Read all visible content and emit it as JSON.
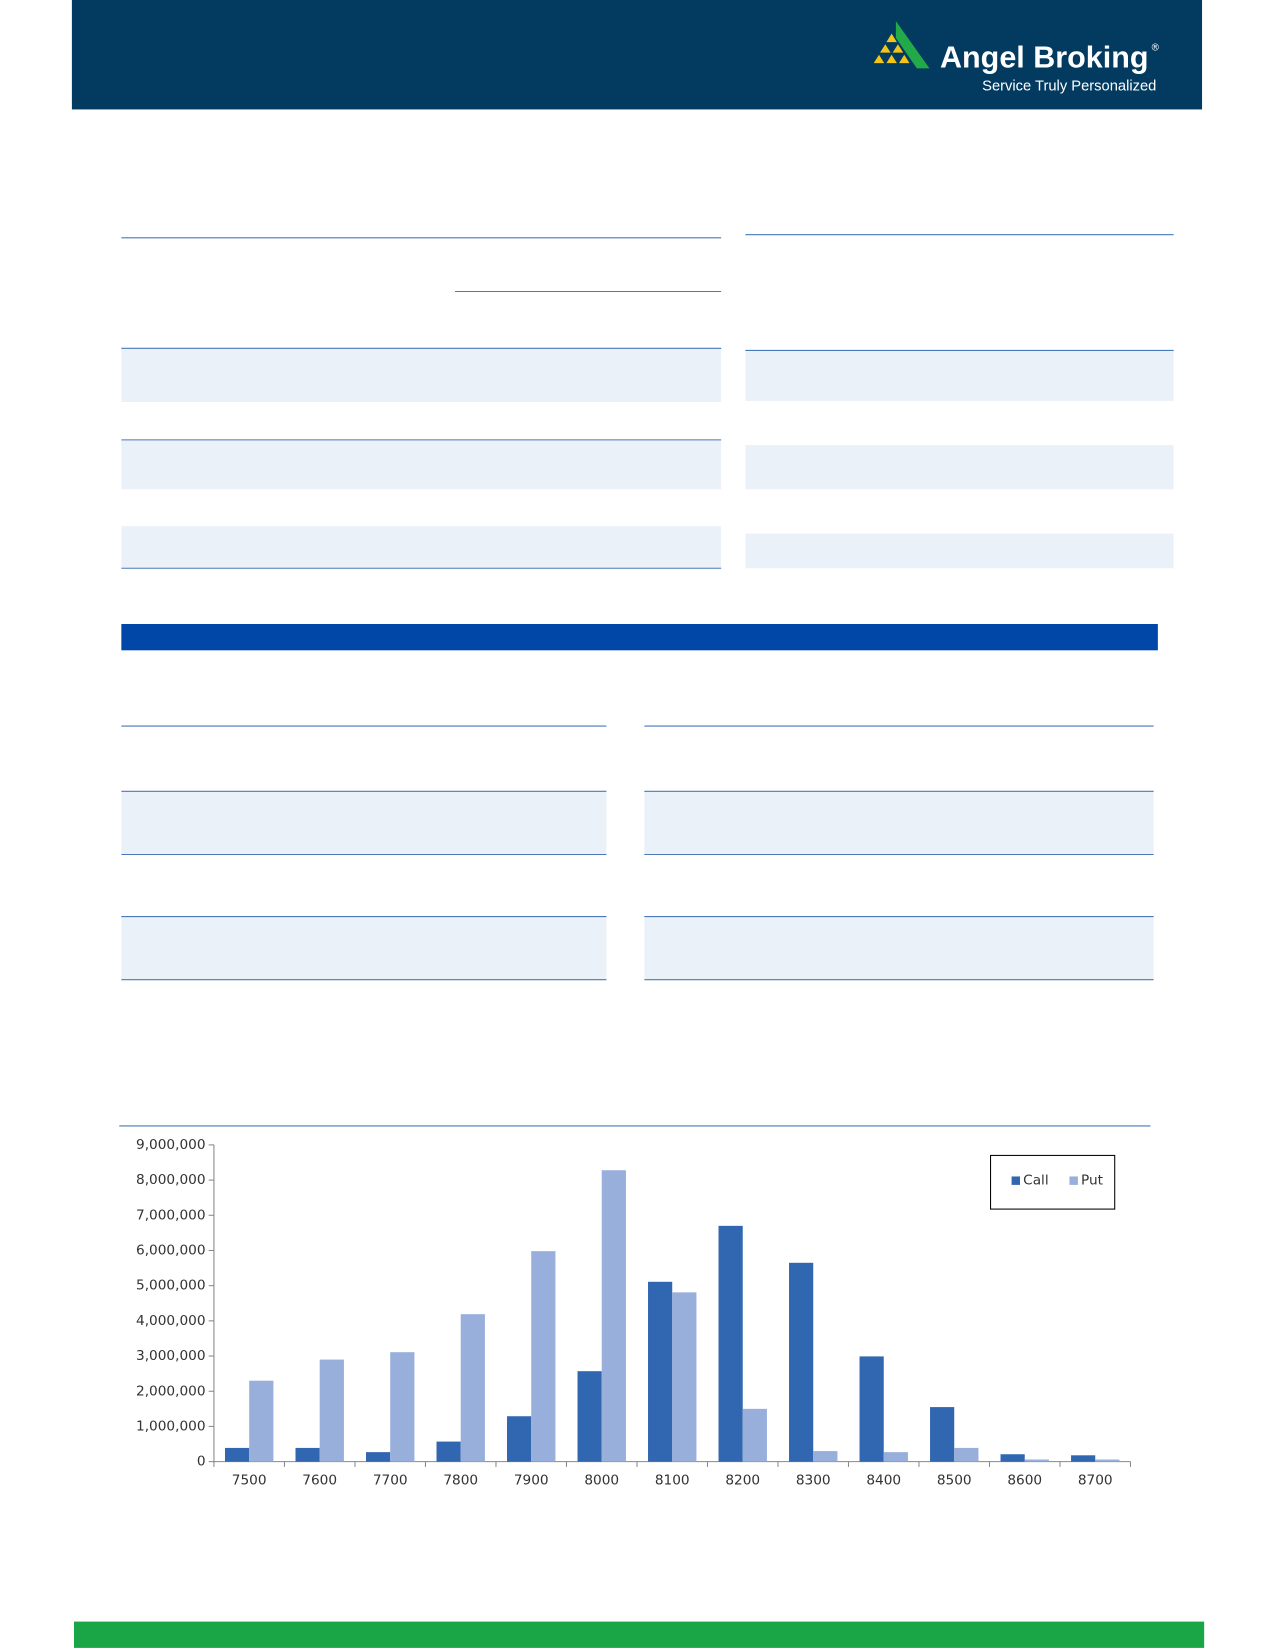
{
  "header": {
    "brand": "Angel Broking",
    "registered": "®",
    "tagline": "Service Truly Personalized"
  },
  "chart_data": {
    "type": "bar",
    "categories": [
      "7500",
      "7600",
      "7700",
      "7800",
      "7900",
      "8000",
      "8100",
      "8200",
      "8300",
      "8400",
      "8500",
      "8600",
      "8700"
    ],
    "series": [
      {
        "name": "Call",
        "color": "#3166b0",
        "values": [
          390000,
          390000,
          270000,
          570000,
          1290000,
          2570000,
          5110000,
          6700000,
          5650000,
          2990000,
          1550000,
          210000,
          180000
        ]
      },
      {
        "name": "Put",
        "color": "#98aedb",
        "values": [
          2300000,
          2900000,
          3110000,
          4190000,
          5980000,
          8280000,
          4810000,
          1500000,
          300000,
          270000,
          390000,
          60000,
          60000
        ]
      }
    ],
    "ylim": [
      0,
      9000000
    ],
    "yticks": [
      0,
      {
        "value": 1000000,
        "label": "1,000,000"
      },
      {
        "value": 2000000,
        "label": "2,000,000"
      },
      {
        "value": 3000000,
        "label": "3,000,000"
      },
      {
        "value": 4000000,
        "label": "4,000,000"
      },
      {
        "value": 5000000,
        "label": "5,000,000"
      },
      {
        "value": 6000000,
        "label": "6,000,000"
      },
      {
        "value": 7000000,
        "label": "7,000,000"
      },
      {
        "value": 8000000,
        "label": "8,000,000"
      },
      {
        "value": 9000000,
        "label": "9,000,000"
      }
    ],
    "legend": "top-right"
  }
}
